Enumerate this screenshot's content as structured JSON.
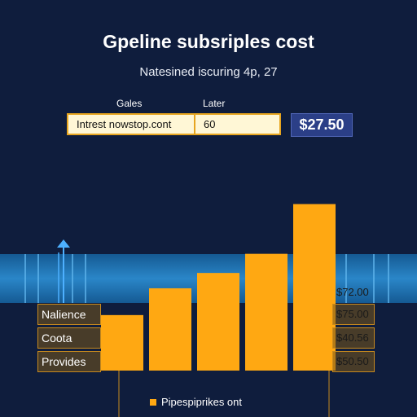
{
  "header": {
    "title": "Gpeline subsriples cost",
    "subtitle": "Natesined iscuring 4p, 27"
  },
  "form": {
    "col1_label": "Gales",
    "col2_label": "Later",
    "field1_value": "Intrest nowstop.cont",
    "field2_value": "60",
    "price": "$27.50"
  },
  "colors": {
    "background": "#0f1d3d",
    "bar": "#ffa812",
    "band": "#1f6fb0",
    "price_box": "#2b3f87"
  },
  "chart_data": {
    "type": "bar",
    "values": [
      29,
      43,
      51,
      61,
      87
    ],
    "ylim": [
      0,
      100
    ],
    "legend": [
      "Pipespiprikes ont"
    ],
    "legend_position": "bottom",
    "band_label": "$72.00",
    "rows": [
      {
        "label": "Nalience",
        "value": "$75.00"
      },
      {
        "label": "Coota",
        "value": "$40.56"
      },
      {
        "label": "Provides",
        "value": "$50.50"
      }
    ]
  }
}
